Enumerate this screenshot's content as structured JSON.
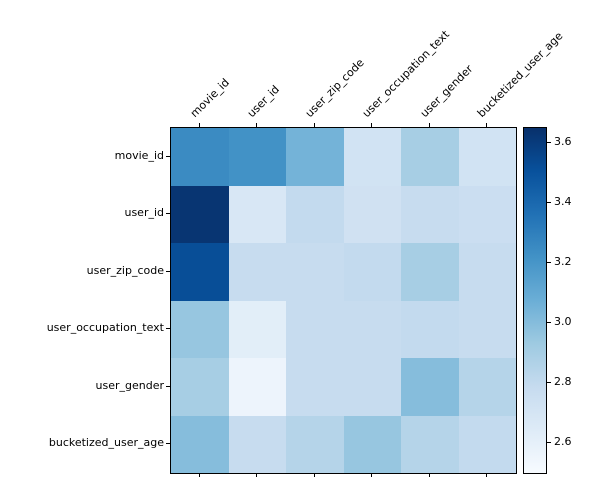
{
  "chart_data": {
    "type": "heatmap",
    "title": "",
    "xlabel": "",
    "ylabel": "",
    "categories": [
      "movie_id",
      "user_id",
      "user_zip_code",
      "user_occupation_text",
      "user_gender",
      "bucketized_user_age"
    ],
    "matrix": [
      [
        3.25,
        3.22,
        3.05,
        2.72,
        2.9,
        2.72
      ],
      [
        3.63,
        2.68,
        2.8,
        2.73,
        2.78,
        2.76
      ],
      [
        3.52,
        2.78,
        2.78,
        2.8,
        2.9,
        2.78
      ],
      [
        2.95,
        2.62,
        2.78,
        2.78,
        2.8,
        2.78
      ],
      [
        2.9,
        2.56,
        2.78,
        2.78,
        3.0,
        2.85
      ],
      [
        3.0,
        2.78,
        2.85,
        2.95,
        2.85,
        2.8
      ]
    ],
    "vmin": 2.5,
    "vmax": 3.65,
    "colorbar_ticks": [
      2.6,
      2.8,
      3.0,
      3.2,
      3.4,
      3.6
    ],
    "colormap": "Blues",
    "colormap_stops": [
      "#f7fbff",
      "#deebf7",
      "#c6dbef",
      "#9ecae1",
      "#6baed6",
      "#4292c6",
      "#2171b5",
      "#08519c",
      "#08306b"
    ],
    "legend_position": "right-colorbar",
    "grid": false
  }
}
